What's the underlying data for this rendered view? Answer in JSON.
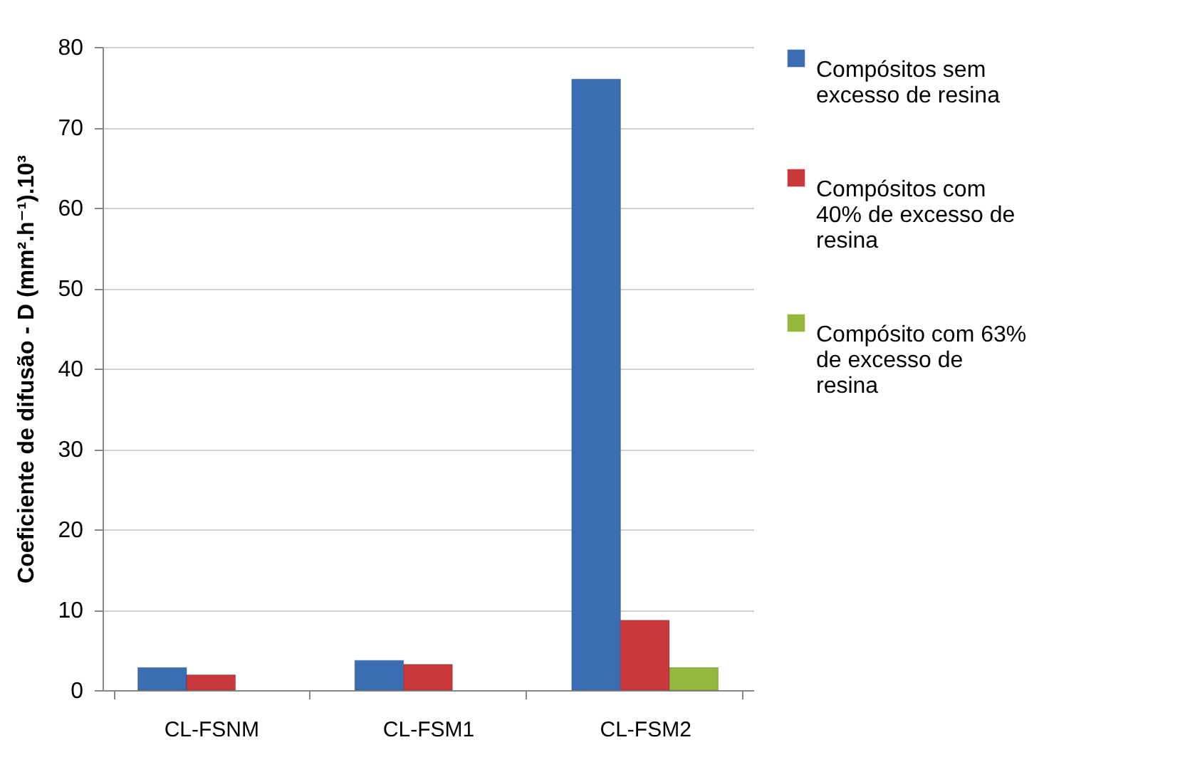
{
  "chart_data": {
    "type": "bar",
    "ylabel": "Coeficiente de difusão - D (mm².h⁻¹).10³",
    "categories": [
      "CL-FSNM",
      "CL-FSM1",
      "CL-FSM2"
    ],
    "series": [
      {
        "name": "Compósitos sem excesso de resina",
        "color": "#3b6db3",
        "values": [
          2.8,
          3.7,
          76
        ]
      },
      {
        "name": "Compósitos com 40% de excesso de resina",
        "color": "#c9383a",
        "values": [
          1.9,
          3.2,
          8.7
        ]
      },
      {
        "name": "Compósito com 63% de excesso de resina",
        "color": "#93b83c",
        "values": [
          null,
          null,
          2.8
        ]
      }
    ],
    "ylim": [
      0,
      80
    ],
    "yticks": [
      0,
      10,
      20,
      30,
      40,
      50,
      60,
      70,
      80
    ],
    "grid": "y",
    "legend": "right"
  }
}
